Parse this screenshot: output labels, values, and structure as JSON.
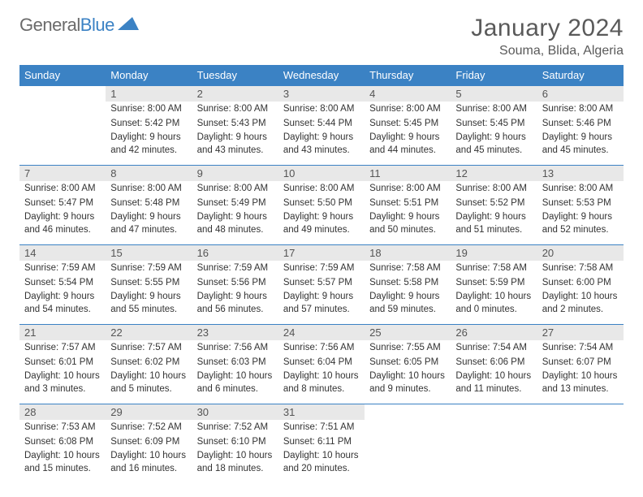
{
  "logo": {
    "text1": "General",
    "text2": "Blue"
  },
  "title": "January 2024",
  "location": "Souma, Blida, Algeria",
  "colors": {
    "header_bg": "#3b82c4",
    "daynum_bg": "#e8e8e8",
    "text": "#333333",
    "logo_gray": "#6b6b6b",
    "logo_blue": "#3b82c4"
  },
  "day_headers": [
    "Sunday",
    "Monday",
    "Tuesday",
    "Wednesday",
    "Thursday",
    "Friday",
    "Saturday"
  ],
  "weeks": [
    [
      {
        "n": "",
        "sr": "",
        "ss": "",
        "dl": ""
      },
      {
        "n": "1",
        "sr": "Sunrise: 8:00 AM",
        "ss": "Sunset: 5:42 PM",
        "dl": "Daylight: 9 hours and 42 minutes."
      },
      {
        "n": "2",
        "sr": "Sunrise: 8:00 AM",
        "ss": "Sunset: 5:43 PM",
        "dl": "Daylight: 9 hours and 43 minutes."
      },
      {
        "n": "3",
        "sr": "Sunrise: 8:00 AM",
        "ss": "Sunset: 5:44 PM",
        "dl": "Daylight: 9 hours and 43 minutes."
      },
      {
        "n": "4",
        "sr": "Sunrise: 8:00 AM",
        "ss": "Sunset: 5:45 PM",
        "dl": "Daylight: 9 hours and 44 minutes."
      },
      {
        "n": "5",
        "sr": "Sunrise: 8:00 AM",
        "ss": "Sunset: 5:45 PM",
        "dl": "Daylight: 9 hours and 45 minutes."
      },
      {
        "n": "6",
        "sr": "Sunrise: 8:00 AM",
        "ss": "Sunset: 5:46 PM",
        "dl": "Daylight: 9 hours and 45 minutes."
      }
    ],
    [
      {
        "n": "7",
        "sr": "Sunrise: 8:00 AM",
        "ss": "Sunset: 5:47 PM",
        "dl": "Daylight: 9 hours and 46 minutes."
      },
      {
        "n": "8",
        "sr": "Sunrise: 8:00 AM",
        "ss": "Sunset: 5:48 PM",
        "dl": "Daylight: 9 hours and 47 minutes."
      },
      {
        "n": "9",
        "sr": "Sunrise: 8:00 AM",
        "ss": "Sunset: 5:49 PM",
        "dl": "Daylight: 9 hours and 48 minutes."
      },
      {
        "n": "10",
        "sr": "Sunrise: 8:00 AM",
        "ss": "Sunset: 5:50 PM",
        "dl": "Daylight: 9 hours and 49 minutes."
      },
      {
        "n": "11",
        "sr": "Sunrise: 8:00 AM",
        "ss": "Sunset: 5:51 PM",
        "dl": "Daylight: 9 hours and 50 minutes."
      },
      {
        "n": "12",
        "sr": "Sunrise: 8:00 AM",
        "ss": "Sunset: 5:52 PM",
        "dl": "Daylight: 9 hours and 51 minutes."
      },
      {
        "n": "13",
        "sr": "Sunrise: 8:00 AM",
        "ss": "Sunset: 5:53 PM",
        "dl": "Daylight: 9 hours and 52 minutes."
      }
    ],
    [
      {
        "n": "14",
        "sr": "Sunrise: 7:59 AM",
        "ss": "Sunset: 5:54 PM",
        "dl": "Daylight: 9 hours and 54 minutes."
      },
      {
        "n": "15",
        "sr": "Sunrise: 7:59 AM",
        "ss": "Sunset: 5:55 PM",
        "dl": "Daylight: 9 hours and 55 minutes."
      },
      {
        "n": "16",
        "sr": "Sunrise: 7:59 AM",
        "ss": "Sunset: 5:56 PM",
        "dl": "Daylight: 9 hours and 56 minutes."
      },
      {
        "n": "17",
        "sr": "Sunrise: 7:59 AM",
        "ss": "Sunset: 5:57 PM",
        "dl": "Daylight: 9 hours and 57 minutes."
      },
      {
        "n": "18",
        "sr": "Sunrise: 7:58 AM",
        "ss": "Sunset: 5:58 PM",
        "dl": "Daylight: 9 hours and 59 minutes."
      },
      {
        "n": "19",
        "sr": "Sunrise: 7:58 AM",
        "ss": "Sunset: 5:59 PM",
        "dl": "Daylight: 10 hours and 0 minutes."
      },
      {
        "n": "20",
        "sr": "Sunrise: 7:58 AM",
        "ss": "Sunset: 6:00 PM",
        "dl": "Daylight: 10 hours and 2 minutes."
      }
    ],
    [
      {
        "n": "21",
        "sr": "Sunrise: 7:57 AM",
        "ss": "Sunset: 6:01 PM",
        "dl": "Daylight: 10 hours and 3 minutes."
      },
      {
        "n": "22",
        "sr": "Sunrise: 7:57 AM",
        "ss": "Sunset: 6:02 PM",
        "dl": "Daylight: 10 hours and 5 minutes."
      },
      {
        "n": "23",
        "sr": "Sunrise: 7:56 AM",
        "ss": "Sunset: 6:03 PM",
        "dl": "Daylight: 10 hours and 6 minutes."
      },
      {
        "n": "24",
        "sr": "Sunrise: 7:56 AM",
        "ss": "Sunset: 6:04 PM",
        "dl": "Daylight: 10 hours and 8 minutes."
      },
      {
        "n": "25",
        "sr": "Sunrise: 7:55 AM",
        "ss": "Sunset: 6:05 PM",
        "dl": "Daylight: 10 hours and 9 minutes."
      },
      {
        "n": "26",
        "sr": "Sunrise: 7:54 AM",
        "ss": "Sunset: 6:06 PM",
        "dl": "Daylight: 10 hours and 11 minutes."
      },
      {
        "n": "27",
        "sr": "Sunrise: 7:54 AM",
        "ss": "Sunset: 6:07 PM",
        "dl": "Daylight: 10 hours and 13 minutes."
      }
    ],
    [
      {
        "n": "28",
        "sr": "Sunrise: 7:53 AM",
        "ss": "Sunset: 6:08 PM",
        "dl": "Daylight: 10 hours and 15 minutes."
      },
      {
        "n": "29",
        "sr": "Sunrise: 7:52 AM",
        "ss": "Sunset: 6:09 PM",
        "dl": "Daylight: 10 hours and 16 minutes."
      },
      {
        "n": "30",
        "sr": "Sunrise: 7:52 AM",
        "ss": "Sunset: 6:10 PM",
        "dl": "Daylight: 10 hours and 18 minutes."
      },
      {
        "n": "31",
        "sr": "Sunrise: 7:51 AM",
        "ss": "Sunset: 6:11 PM",
        "dl": "Daylight: 10 hours and 20 minutes."
      },
      {
        "n": "",
        "sr": "",
        "ss": "",
        "dl": ""
      },
      {
        "n": "",
        "sr": "",
        "ss": "",
        "dl": ""
      },
      {
        "n": "",
        "sr": "",
        "ss": "",
        "dl": ""
      }
    ]
  ]
}
